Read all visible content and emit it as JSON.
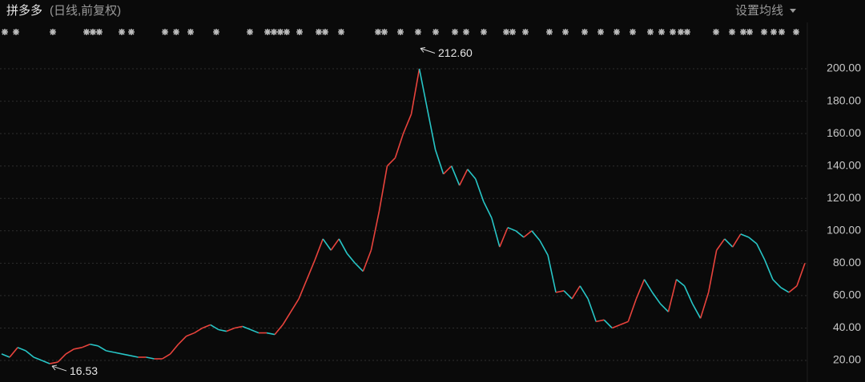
{
  "chart_data": {
    "type": "line",
    "title": "拼多多",
    "subtitle": "(日线,前复权)",
    "menu": "设置均线",
    "ylim": [
      6.7,
      215.3
    ],
    "yticks": [
      {
        "value": 20,
        "label": "20.00"
      },
      {
        "value": 40,
        "label": "40.00"
      },
      {
        "value": 60,
        "label": "60.00"
      },
      {
        "value": 80,
        "label": "80.00"
      },
      {
        "value": 100,
        "label": "100.00"
      },
      {
        "value": 120,
        "label": "120.00"
      },
      {
        "value": 140,
        "label": "140.00"
      },
      {
        "value": 160,
        "label": "160.00"
      },
      {
        "value": 180,
        "label": "180.00"
      },
      {
        "value": 200,
        "label": "200.00"
      }
    ],
    "grid": true,
    "up_color": "#e8433c",
    "down_color": "#27c6c7",
    "values": [
      24,
      22,
      28,
      26,
      22,
      20,
      18,
      19,
      24,
      27,
      28,
      30,
      29,
      26,
      25,
      24,
      23,
      22,
      22,
      21,
      21,
      24,
      30,
      35,
      37,
      40,
      42,
      39,
      38,
      40,
      41,
      39,
      37,
      37,
      36,
      42,
      50,
      58,
      70,
      82,
      95,
      88,
      95,
      86,
      80,
      75,
      88,
      112,
      140,
      145,
      160,
      172,
      200,
      175,
      150,
      135,
      140,
      128,
      138,
      132,
      118,
      108,
      90,
      102,
      100,
      96,
      100,
      94,
      85,
      62,
      63,
      58,
      66,
      58,
      44,
      45,
      40,
      42,
      44,
      58,
      70,
      62,
      55,
      50,
      70,
      66,
      55,
      46,
      62,
      88,
      95,
      90,
      98,
      96,
      92,
      82,
      70,
      65,
      62,
      66,
      80
    ],
    "annotations": [
      {
        "value": 212.6,
        "label": "212.60"
      },
      {
        "value": 16.53,
        "label": "16.53"
      }
    ]
  }
}
